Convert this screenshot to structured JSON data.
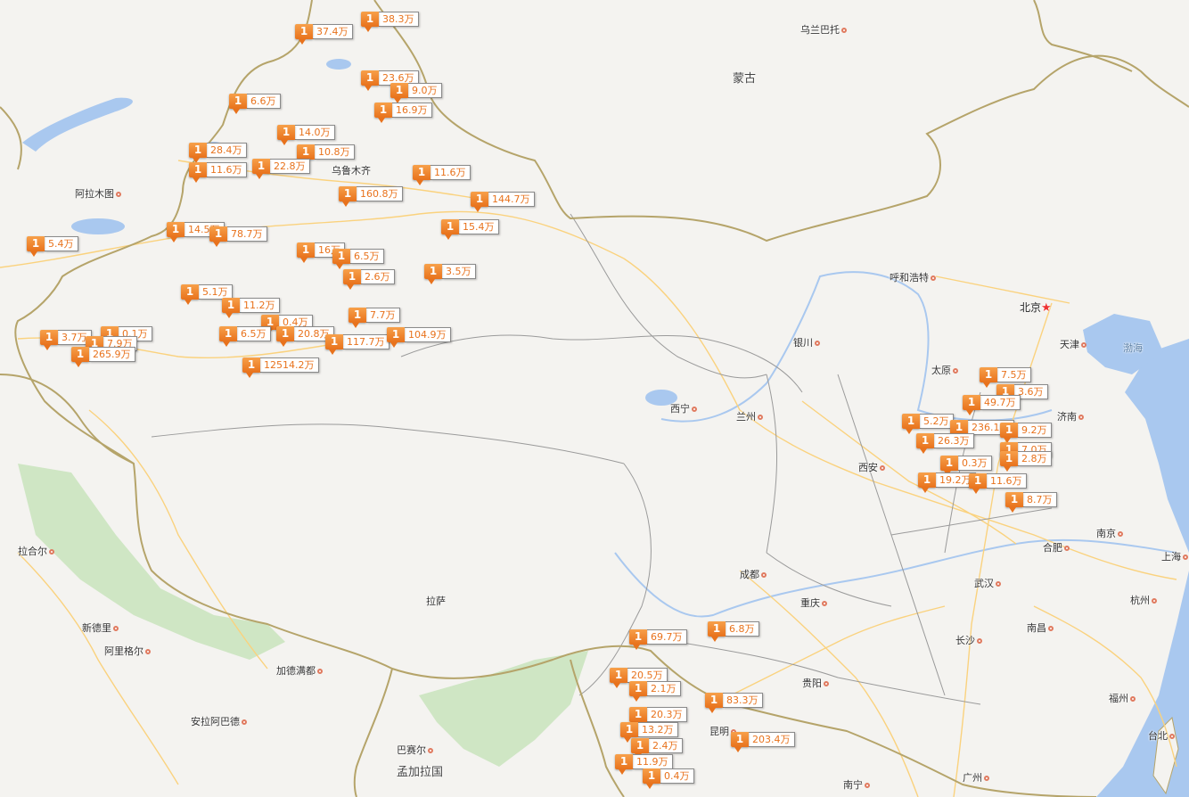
{
  "map": {
    "colors": {
      "land": "#f4f3f0",
      "water": "#a9c8ef",
      "border": "#b5a46a",
      "province": "#9a9a9a",
      "road": "#fad27e",
      "forest": "#cfe6c4",
      "marker": "#e8721c"
    },
    "places": [
      {
        "name": "乌兰巴托",
        "kind": "city"
      },
      {
        "name": "蒙古",
        "kind": "country"
      },
      {
        "name": "乌鲁木齐",
        "kind": "label"
      },
      {
        "name": "阿拉木图",
        "kind": "city"
      },
      {
        "name": "呼和浩特",
        "kind": "city"
      },
      {
        "name": "北京",
        "kind": "capital"
      },
      {
        "name": "天津",
        "kind": "city"
      },
      {
        "name": "渤海",
        "kind": "sea"
      },
      {
        "name": "银川",
        "kind": "city"
      },
      {
        "name": "太原",
        "kind": "city"
      },
      {
        "name": "济南",
        "kind": "city"
      },
      {
        "name": "西宁",
        "kind": "city"
      },
      {
        "name": "兰州",
        "kind": "city"
      },
      {
        "name": "西安",
        "kind": "city"
      },
      {
        "name": "南京",
        "kind": "city"
      },
      {
        "name": "上海",
        "kind": "city"
      },
      {
        "name": "合肥",
        "kind": "city"
      },
      {
        "name": "杭州",
        "kind": "city"
      },
      {
        "name": "武汉",
        "kind": "city"
      },
      {
        "name": "成都",
        "kind": "city"
      },
      {
        "name": "重庆",
        "kind": "city"
      },
      {
        "name": "拉萨",
        "kind": "label"
      },
      {
        "name": "南昌",
        "kind": "city"
      },
      {
        "name": "长沙",
        "kind": "city"
      },
      {
        "name": "贵阳",
        "kind": "city"
      },
      {
        "name": "福州",
        "kind": "city"
      },
      {
        "name": "台北",
        "kind": "city"
      },
      {
        "name": "昆明",
        "kind": "city"
      },
      {
        "name": "广州",
        "kind": "city"
      },
      {
        "name": "南宁",
        "kind": "city"
      },
      {
        "name": "拉合尔",
        "kind": "city"
      },
      {
        "name": "新德里",
        "kind": "city"
      },
      {
        "name": "阿里格尔",
        "kind": "city"
      },
      {
        "name": "加德满都",
        "kind": "city"
      },
      {
        "name": "安拉阿巴德",
        "kind": "city"
      },
      {
        "name": "巴赛尔",
        "kind": "city"
      },
      {
        "name": "孟加拉国",
        "kind": "country"
      }
    ],
    "markers": [
      {
        "count": "1",
        "value": "38.3万"
      },
      {
        "count": "1",
        "value": "37.4万"
      },
      {
        "count": "1",
        "value": "23.6万"
      },
      {
        "count": "1",
        "value": "9.0万"
      },
      {
        "count": "1",
        "value": "16.9万"
      },
      {
        "count": "1",
        "value": "6.6万"
      },
      {
        "count": "1",
        "value": "14.0万"
      },
      {
        "count": "1",
        "value": "10.8万"
      },
      {
        "count": "1",
        "value": "28.4万"
      },
      {
        "count": "1",
        "value": "22.8万"
      },
      {
        "count": "1",
        "value": "11.6万"
      },
      {
        "count": "1",
        "value": "11.6万"
      },
      {
        "count": "1",
        "value": "160.8万"
      },
      {
        "count": "1",
        "value": "144.7万"
      },
      {
        "count": "1",
        "value": "15.4万"
      },
      {
        "count": "1",
        "value": "14.5万"
      },
      {
        "count": "1",
        "value": "78.7万"
      },
      {
        "count": "1",
        "value": "5.4万"
      },
      {
        "count": "1",
        "value": "16万"
      },
      {
        "count": "1",
        "value": "6.5万"
      },
      {
        "count": "1",
        "value": "2.6万"
      },
      {
        "count": "1",
        "value": "3.5万"
      },
      {
        "count": "1",
        "value": "5.1万"
      },
      {
        "count": "1",
        "value": "11.2万"
      },
      {
        "count": "1",
        "value": "0.4万"
      },
      {
        "count": "1",
        "value": "20.8万"
      },
      {
        "count": "1",
        "value": "6.5万"
      },
      {
        "count": "1",
        "value": "7.7万"
      },
      {
        "count": "1",
        "value": "117.7万"
      },
      {
        "count": "1",
        "value": "104.9万"
      },
      {
        "count": "1",
        "value": "0.1万"
      },
      {
        "count": "1",
        "value": "3.7万"
      },
      {
        "count": "1",
        "value": "7.9万"
      },
      {
        "count": "1",
        "value": "265.9万"
      },
      {
        "count": "1",
        "value": "12514.2万"
      },
      {
        "count": "1",
        "value": "7.5万"
      },
      {
        "count": "1",
        "value": "3.6万"
      },
      {
        "count": "1",
        "value": "49.7万"
      },
      {
        "count": "1",
        "value": "5.2万"
      },
      {
        "count": "1",
        "value": "236.1万"
      },
      {
        "count": "1",
        "value": "9.2万"
      },
      {
        "count": "1",
        "value": "26.3万"
      },
      {
        "count": "1",
        "value": "7.0万"
      },
      {
        "count": "1",
        "value": "2.8万"
      },
      {
        "count": "1",
        "value": "0.3万"
      },
      {
        "count": "1",
        "value": "19.2万"
      },
      {
        "count": "1",
        "value": "11.6万"
      },
      {
        "count": "1",
        "value": "8.7万"
      },
      {
        "count": "1",
        "value": "69.7万"
      },
      {
        "count": "1",
        "value": "6.8万"
      },
      {
        "count": "1",
        "value": "20.5万"
      },
      {
        "count": "1",
        "value": "2.1万"
      },
      {
        "count": "1",
        "value": "83.3万"
      },
      {
        "count": "1",
        "value": "20.3万"
      },
      {
        "count": "1",
        "value": "13.2万"
      },
      {
        "count": "1",
        "value": "2.4万"
      },
      {
        "count": "1",
        "value": "203.4万"
      },
      {
        "count": "1",
        "value": "11.9万"
      },
      {
        "count": "1",
        "value": "0.4万"
      }
    ]
  }
}
